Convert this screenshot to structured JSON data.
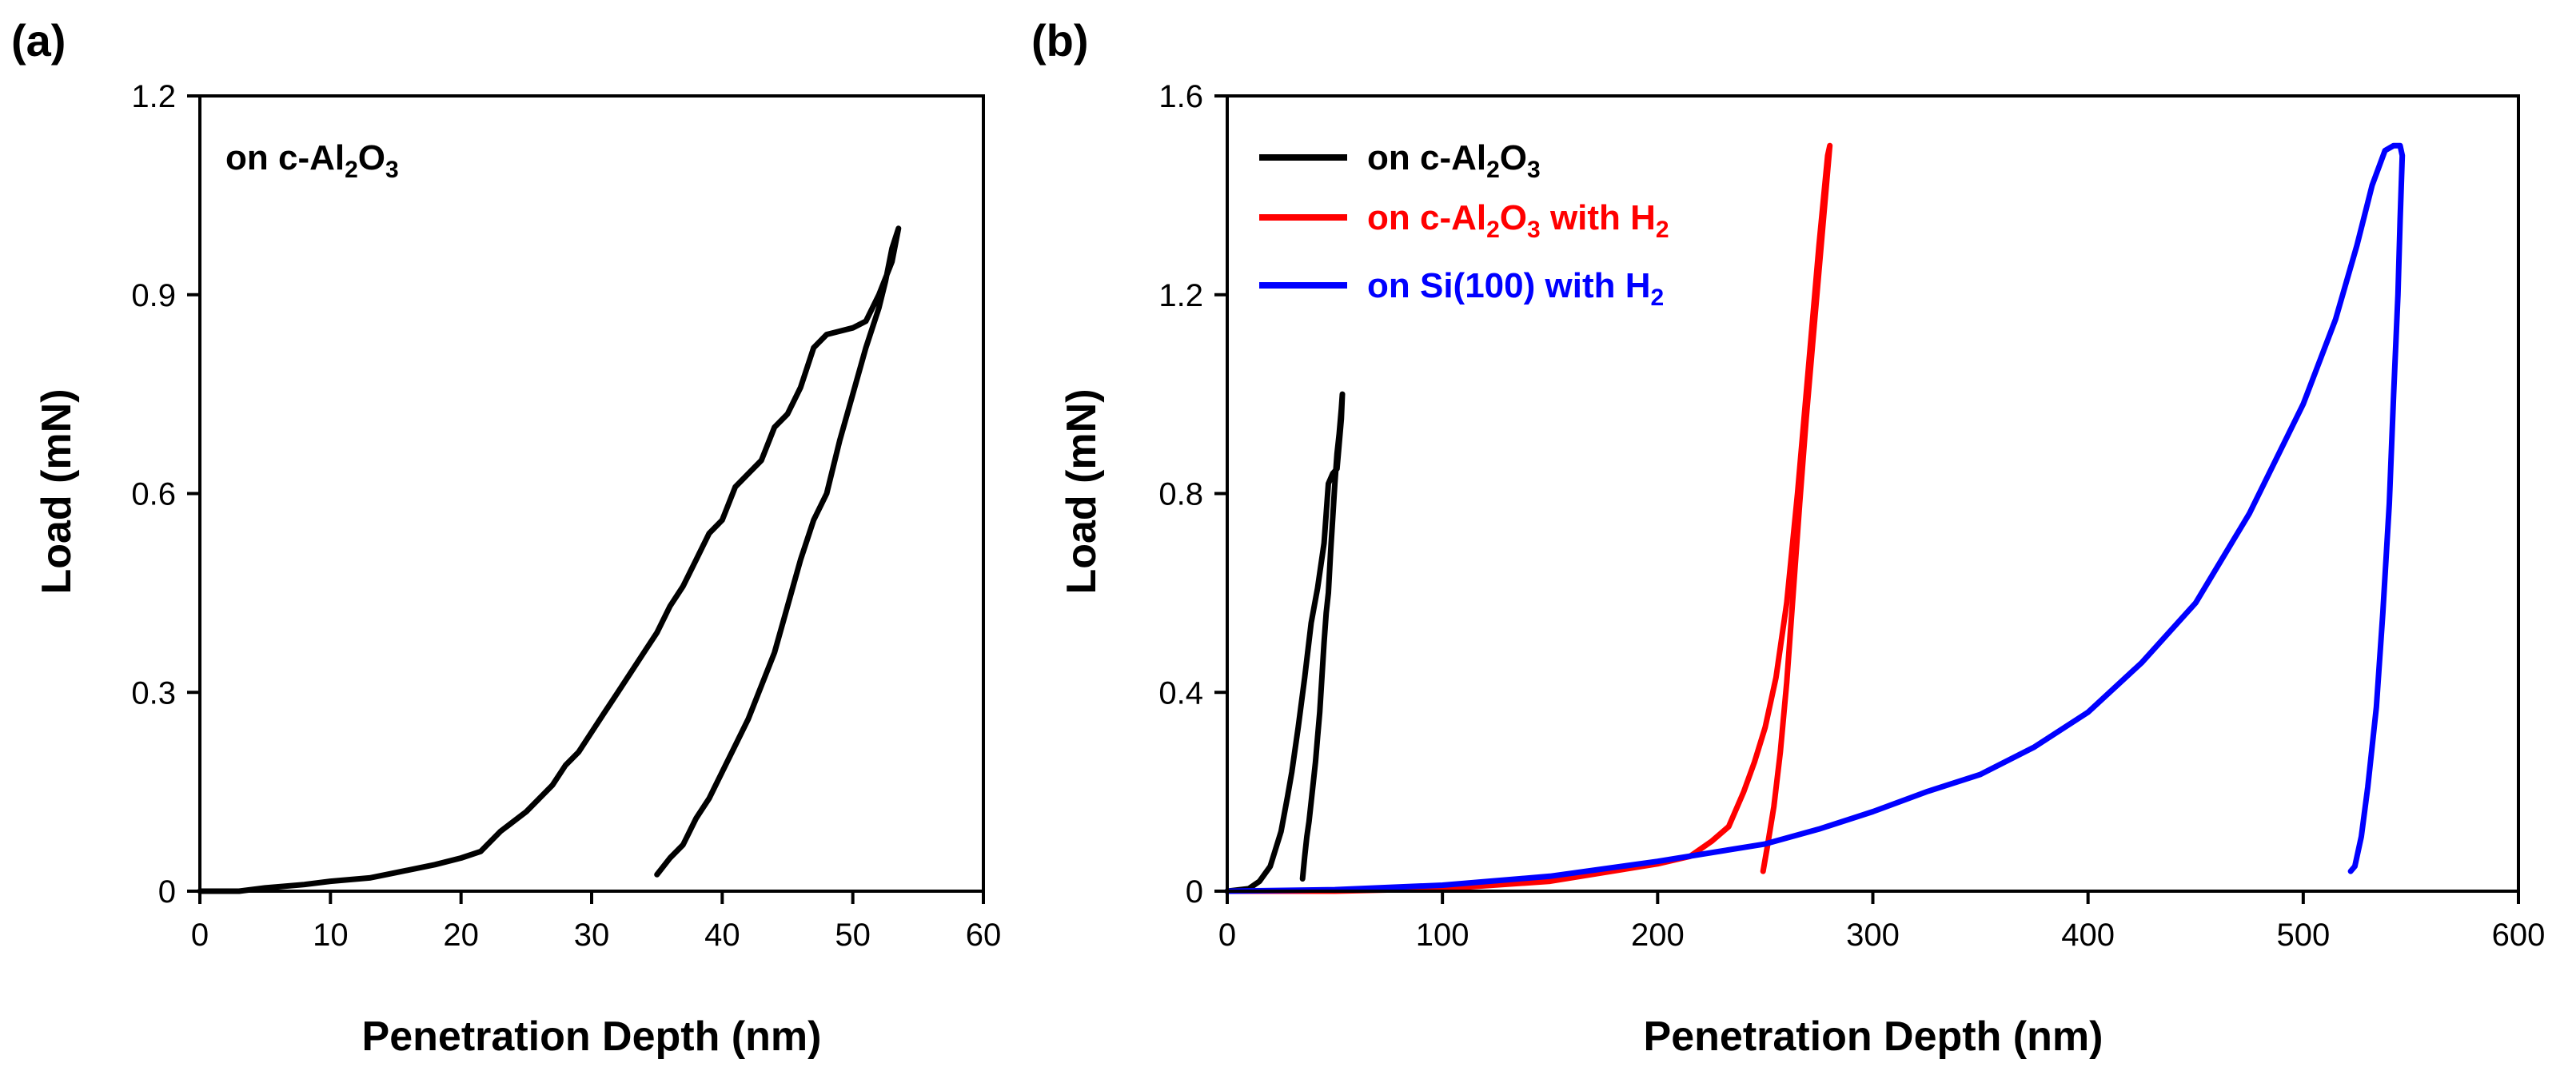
{
  "chart_data": [
    {
      "type": "line",
      "panel_label": "(a)",
      "xlabel": "Penetration Depth (nm)",
      "ylabel": "Load (mN)",
      "xlim": [
        0,
        60
      ],
      "ylim": [
        0,
        1.2
      ],
      "xticks": [
        0,
        10,
        20,
        30,
        40,
        50,
        60
      ],
      "yticks": [
        0,
        0.3,
        0.6,
        0.9,
        1.2
      ],
      "ytick_labels": [
        "0",
        "0.3",
        "0.6",
        "0.9",
        "1.2"
      ],
      "annotation": {
        "text_main": "on c-Al",
        "sub1": "2",
        "mid": "O",
        "sub2": "3",
        "position": "top-left"
      },
      "series": [
        {
          "name": "on c-Al2O3",
          "color": "#000000",
          "x": [
            0,
            3,
            5,
            8,
            10,
            13,
            15,
            18,
            20,
            21.5,
            23,
            25,
            27,
            28,
            29,
            30,
            31,
            32,
            33,
            34,
            35,
            36,
            37,
            38,
            39,
            40,
            41,
            42,
            43,
            44,
            45,
            46,
            47,
            48,
            49,
            50,
            51,
            52,
            53,
            53.5,
            53,
            52.5,
            52,
            51,
            50,
            49,
            48,
            47,
            46,
            45,
            44,
            43,
            42,
            41,
            40,
            39,
            38,
            37,
            36,
            35
          ],
          "y": [
            0,
            0,
            0.005,
            0.01,
            0.015,
            0.02,
            0.028,
            0.04,
            0.05,
            0.06,
            0.09,
            0.12,
            0.16,
            0.19,
            0.21,
            0.24,
            0.27,
            0.3,
            0.33,
            0.36,
            0.39,
            0.43,
            0.46,
            0.5,
            0.54,
            0.56,
            0.61,
            0.63,
            0.65,
            0.7,
            0.72,
            0.76,
            0.82,
            0.84,
            0.845,
            0.85,
            0.86,
            0.9,
            0.95,
            1.0,
            0.97,
            0.92,
            0.88,
            0.82,
            0.75,
            0.68,
            0.6,
            0.56,
            0.5,
            0.43,
            0.36,
            0.31,
            0.26,
            0.22,
            0.18,
            0.14,
            0.11,
            0.07,
            0.05,
            0.025
          ]
        }
      ]
    },
    {
      "type": "line",
      "panel_label": "(b)",
      "xlabel": "Penetration Depth (nm)",
      "ylabel": "Load (mN)",
      "xlim": [
        0,
        600
      ],
      "ylim": [
        0,
        1.6
      ],
      "xticks": [
        0,
        100,
        200,
        300,
        400,
        500,
        600
      ],
      "yticks": [
        0,
        0.4,
        0.8,
        1.2,
        1.6
      ],
      "ytick_labels": [
        "0",
        "0.4",
        "0.8",
        "1.2",
        "1.6"
      ],
      "legend_position": "top-left",
      "legend": [
        {
          "main": "on c-Al",
          "sub1": "2",
          "mid": "O",
          "sub2": "3",
          "tail": "",
          "sub3": "",
          "color": "#000000"
        },
        {
          "main": "on c-Al",
          "sub1": "2",
          "mid": "O",
          "sub2": "3",
          "tail": " with H",
          "sub3": "2",
          "color": "#ff0000"
        },
        {
          "main": "on Si(100) with H",
          "sub1": "2",
          "mid": "",
          "sub2": "",
          "tail": "",
          "sub3": "",
          "color": "#0000ff"
        }
      ],
      "series": [
        {
          "name": "on c-Al2O3",
          "color": "#000000",
          "x": [
            0,
            10,
            15,
            20,
            25,
            28,
            30,
            33,
            36,
            39,
            42,
            45,
            47,
            49,
            51,
            52,
            53,
            53.5,
            53,
            52,
            51,
            50,
            49,
            48,
            47,
            46,
            45,
            44,
            43,
            42,
            41,
            40,
            39,
            38,
            37,
            36,
            35
          ],
          "y": [
            0,
            0.005,
            0.02,
            0.05,
            0.12,
            0.19,
            0.24,
            0.33,
            0.43,
            0.54,
            0.61,
            0.7,
            0.82,
            0.84,
            0.85,
            0.9,
            0.95,
            1.0,
            0.97,
            0.92,
            0.88,
            0.82,
            0.75,
            0.68,
            0.6,
            0.56,
            0.5,
            0.43,
            0.36,
            0.31,
            0.26,
            0.22,
            0.18,
            0.14,
            0.11,
            0.07,
            0.025
          ]
        },
        {
          "name": "on c-Al2O3 with H2",
          "color": "#ff0000",
          "x": [
            0,
            50,
            100,
            150,
            200,
            215,
            225,
            233,
            240,
            245,
            250,
            255,
            260,
            265,
            270,
            275,
            279,
            280,
            278,
            275,
            272,
            269,
            266,
            263,
            260,
            257,
            254,
            251,
            249
          ],
          "y": [
            0,
            0,
            0.005,
            0.02,
            0.055,
            0.07,
            0.1,
            0.13,
            0.2,
            0.26,
            0.33,
            0.43,
            0.58,
            0.8,
            1.05,
            1.3,
            1.48,
            1.5,
            1.4,
            1.25,
            1.1,
            0.95,
            0.78,
            0.6,
            0.42,
            0.28,
            0.17,
            0.09,
            0.04
          ]
        },
        {
          "name": "on Si(100) with H2",
          "color": "#0000ff",
          "x": [
            0,
            50,
            100,
            150,
            200,
            250,
            275,
            300,
            325,
            350,
            375,
            400,
            425,
            450,
            475,
            500,
            515,
            525,
            532,
            538,
            542,
            545,
            546,
            545,
            544,
            542,
            540,
            537,
            534,
            530,
            527,
            524,
            522
          ],
          "y": [
            0,
            0.003,
            0.012,
            0.03,
            0.06,
            0.095,
            0.125,
            0.16,
            0.2,
            0.235,
            0.29,
            0.36,
            0.46,
            0.58,
            0.76,
            0.98,
            1.15,
            1.3,
            1.42,
            1.49,
            1.5,
            1.5,
            1.48,
            1.35,
            1.2,
            1.0,
            0.78,
            0.56,
            0.37,
            0.21,
            0.11,
            0.05,
            0.04
          ]
        }
      ]
    }
  ]
}
